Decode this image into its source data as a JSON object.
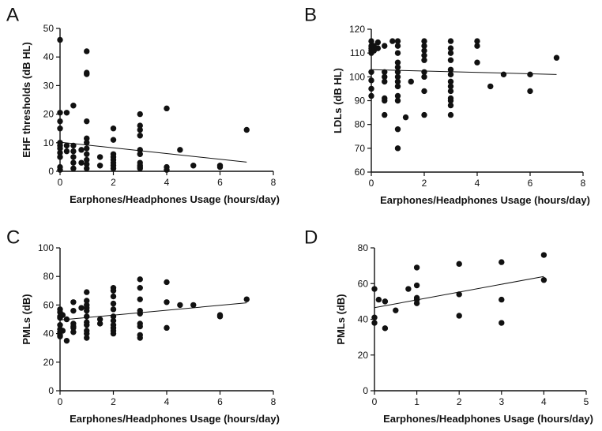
{
  "chart_data": [
    {
      "panel": "A",
      "type": "scatter",
      "xlabel": "Earphones/Headphones Usage (hours/day)",
      "ylabel": "EHF thresholds (dB HL)",
      "xlim": [
        0,
        8
      ],
      "ylim": [
        0,
        50
      ],
      "xticks": [
        0,
        2,
        4,
        6,
        8
      ],
      "yticks": [
        0,
        10,
        20,
        30,
        40,
        50
      ],
      "points": [
        [
          0,
          46
        ],
        [
          0,
          20.5
        ],
        [
          0,
          17.5
        ],
        [
          0,
          15
        ],
        [
          0,
          10
        ],
        [
          0,
          9
        ],
        [
          0,
          8
        ],
        [
          0,
          6.5
        ],
        [
          0,
          5
        ],
        [
          0,
          1.5
        ],
        [
          0,
          0.5
        ],
        [
          0.25,
          20.5
        ],
        [
          0.25,
          9
        ],
        [
          0.25,
          7
        ],
        [
          0.5,
          23
        ],
        [
          0.5,
          9
        ],
        [
          0.5,
          7
        ],
        [
          0.5,
          5
        ],
        [
          0.5,
          3
        ],
        [
          0.5,
          1
        ],
        [
          0.8,
          3
        ],
        [
          0.8,
          7.5
        ],
        [
          1,
          42
        ],
        [
          1,
          34.5
        ],
        [
          1,
          34
        ],
        [
          1,
          17.5
        ],
        [
          1,
          11.5
        ],
        [
          1,
          10
        ],
        [
          1,
          8
        ],
        [
          1,
          6
        ],
        [
          1,
          4
        ],
        [
          1,
          2.5
        ],
        [
          1,
          1
        ],
        [
          1.5,
          5
        ],
        [
          1.5,
          2
        ],
        [
          2,
          15
        ],
        [
          2,
          11
        ],
        [
          2,
          6
        ],
        [
          2,
          5
        ],
        [
          2,
          4
        ],
        [
          2,
          3
        ],
        [
          2,
          2
        ],
        [
          2,
          1
        ],
        [
          3,
          20
        ],
        [
          3,
          16
        ],
        [
          3,
          14.5
        ],
        [
          3,
          12.5
        ],
        [
          3,
          7.5
        ],
        [
          3,
          6
        ],
        [
          3,
          3
        ],
        [
          3,
          2
        ],
        [
          3,
          1.5
        ],
        [
          3,
          1
        ],
        [
          4,
          22
        ],
        [
          4,
          1.5
        ],
        [
          4,
          0.5
        ],
        [
          4.5,
          7.5
        ],
        [
          5,
          2
        ],
        [
          6,
          2
        ],
        [
          6,
          1.5
        ],
        [
          7,
          14.5
        ]
      ],
      "regression": [
        [
          0,
          10.2
        ],
        [
          7,
          3.2
        ]
      ]
    },
    {
      "panel": "B",
      "type": "scatter",
      "xlabel": "Earphones/Headphones Usage (hours/day)",
      "ylabel": "LDLs (dB HL)",
      "xlim": [
        0,
        8
      ],
      "ylim": [
        60,
        120
      ],
      "xticks": [
        0,
        2,
        4,
        6,
        8
      ],
      "yticks": [
        60,
        70,
        80,
        90,
        100,
        110,
        120
      ],
      "points": [
        [
          0,
          115
        ],
        [
          0,
          113
        ],
        [
          0,
          112
        ],
        [
          0,
          111
        ],
        [
          0,
          110
        ],
        [
          0,
          102
        ],
        [
          0,
          98.5
        ],
        [
          0,
          95
        ],
        [
          0,
          92
        ],
        [
          0.1,
          113
        ],
        [
          0.1,
          111
        ],
        [
          0.25,
          114.5
        ],
        [
          0.25,
          112
        ],
        [
          0.5,
          113
        ],
        [
          0.5,
          102
        ],
        [
          0.5,
          100
        ],
        [
          0.5,
          98
        ],
        [
          0.5,
          91
        ],
        [
          0.5,
          90
        ],
        [
          0.5,
          84
        ],
        [
          0.8,
          115
        ],
        [
          1,
          115
        ],
        [
          1,
          113
        ],
        [
          1,
          110
        ],
        [
          1,
          106
        ],
        [
          1,
          104
        ],
        [
          1,
          102
        ],
        [
          1,
          100
        ],
        [
          1,
          98
        ],
        [
          1,
          96
        ],
        [
          1,
          92
        ],
        [
          1,
          90
        ],
        [
          1,
          78
        ],
        [
          1,
          70
        ],
        [
          1.3,
          83
        ],
        [
          1.5,
          98
        ],
        [
          2,
          115
        ],
        [
          2,
          113
        ],
        [
          2,
          111
        ],
        [
          2,
          109
        ],
        [
          2,
          107
        ],
        [
          2,
          102
        ],
        [
          2,
          100
        ],
        [
          2,
          94
        ],
        [
          2,
          84
        ],
        [
          3,
          115
        ],
        [
          3,
          112
        ],
        [
          3,
          110
        ],
        [
          3,
          107
        ],
        [
          3,
          103
        ],
        [
          3,
          101
        ],
        [
          3,
          98
        ],
        [
          3,
          96
        ],
        [
          3,
          94
        ],
        [
          3,
          91
        ],
        [
          3,
          90
        ],
        [
          3,
          88
        ],
        [
          3,
          84
        ],
        [
          4,
          115
        ],
        [
          4,
          113
        ],
        [
          4,
          106
        ],
        [
          4.5,
          96
        ],
        [
          5,
          101
        ],
        [
          6,
          101
        ],
        [
          6,
          94
        ],
        [
          7,
          108
        ]
      ],
      "regression": [
        [
          0,
          103
        ],
        [
          7,
          101
        ]
      ]
    },
    {
      "panel": "C",
      "type": "scatter",
      "xlabel": "Earphones/Headphones Usage (hours/day)",
      "ylabel": "PMLs (dB)",
      "xlim": [
        0,
        8
      ],
      "ylim": [
        0,
        100
      ],
      "xticks": [
        0,
        2,
        4,
        6,
        8
      ],
      "yticks": [
        0,
        20,
        40,
        60,
        80,
        100
      ],
      "points": [
        [
          0,
          57
        ],
        [
          0,
          55
        ],
        [
          0,
          52
        ],
        [
          0,
          51
        ],
        [
          0,
          46
        ],
        [
          0,
          43
        ],
        [
          0,
          41
        ],
        [
          0,
          39
        ],
        [
          0,
          38
        ],
        [
          0.1,
          53
        ],
        [
          0.1,
          42
        ],
        [
          0.25,
          50
        ],
        [
          0.25,
          35
        ],
        [
          0.5,
          62
        ],
        [
          0.5,
          56
        ],
        [
          0.5,
          47
        ],
        [
          0.5,
          45
        ],
        [
          0.5,
          44
        ],
        [
          0.5,
          41
        ],
        [
          0.8,
          58
        ],
        [
          1,
          69
        ],
        [
          1,
          63
        ],
        [
          1,
          60
        ],
        [
          1,
          58
        ],
        [
          1,
          56
        ],
        [
          1,
          52
        ],
        [
          1,
          48
        ],
        [
          1,
          46
        ],
        [
          1,
          42
        ],
        [
          1,
          40
        ],
        [
          1,
          37
        ],
        [
          1.5,
          50
        ],
        [
          1.5,
          47
        ],
        [
          2,
          72
        ],
        [
          2,
          70
        ],
        [
          2,
          66
        ],
        [
          2,
          61
        ],
        [
          2,
          57
        ],
        [
          2,
          52
        ],
        [
          2,
          49
        ],
        [
          2,
          46
        ],
        [
          2,
          44
        ],
        [
          2,
          42
        ],
        [
          2,
          40
        ],
        [
          3,
          78
        ],
        [
          3,
          72
        ],
        [
          3,
          64
        ],
        [
          3,
          56
        ],
        [
          3,
          54
        ],
        [
          3,
          47
        ],
        [
          3,
          45
        ],
        [
          3,
          39
        ],
        [
          3,
          37
        ],
        [
          4,
          76
        ],
        [
          4,
          62
        ],
        [
          4,
          44
        ],
        [
          4.5,
          60
        ],
        [
          5,
          60
        ],
        [
          6,
          53
        ],
        [
          6,
          52
        ],
        [
          7,
          64
        ]
      ],
      "regression": [
        [
          0,
          49.5
        ],
        [
          7,
          61.5
        ]
      ]
    },
    {
      "panel": "D",
      "type": "scatter",
      "xlabel": "Earphones/Headphones Usage (hours/day)",
      "ylabel": "PMLs (dB)",
      "xlim": [
        0,
        5
      ],
      "ylim": [
        0,
        80
      ],
      "xticks": [
        0,
        1,
        2,
        3,
        4,
        5
      ],
      "yticks": [
        0,
        20,
        40,
        60,
        80
      ],
      "points": [
        [
          0,
          57
        ],
        [
          0,
          41
        ],
        [
          0,
          38
        ],
        [
          0.1,
          51
        ],
        [
          0.25,
          50
        ],
        [
          0.25,
          35
        ],
        [
          0.5,
          45
        ],
        [
          0.8,
          57
        ],
        [
          1,
          69
        ],
        [
          1,
          59
        ],
        [
          1,
          52
        ],
        [
          1,
          51
        ],
        [
          1,
          49
        ],
        [
          2,
          71
        ],
        [
          2,
          54
        ],
        [
          2,
          42
        ],
        [
          3,
          72
        ],
        [
          3,
          51
        ],
        [
          3,
          38
        ],
        [
          4,
          76
        ],
        [
          4,
          62
        ]
      ],
      "regression": [
        [
          0,
          46.5
        ],
        [
          4,
          64
        ]
      ]
    }
  ]
}
